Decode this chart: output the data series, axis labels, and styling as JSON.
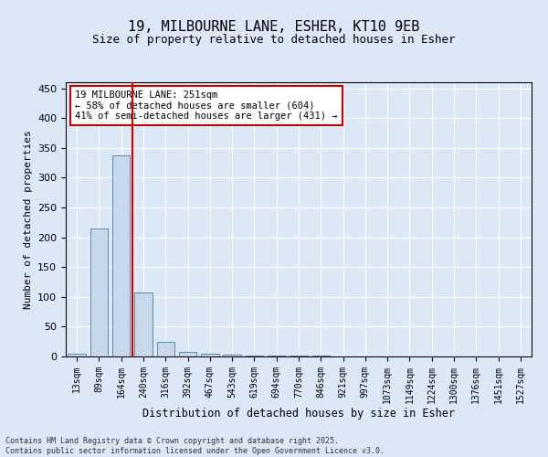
{
  "title": "19, MILBOURNE LANE, ESHER, KT10 9EB",
  "subtitle": "Size of property relative to detached houses in Esher",
  "xlabel": "Distribution of detached houses by size in Esher",
  "ylabel": "Number of detached properties",
  "categories": [
    "13sqm",
    "89sqm",
    "164sqm",
    "240sqm",
    "316sqm",
    "392sqm",
    "467sqm",
    "543sqm",
    "619sqm",
    "694sqm",
    "770sqm",
    "846sqm",
    "921sqm",
    "997sqm",
    "1073sqm",
    "1149sqm",
    "1224sqm",
    "1300sqm",
    "1376sqm",
    "1451sqm",
    "1527sqm"
  ],
  "values": [
    5,
    215,
    338,
    108,
    25,
    8,
    4,
    3,
    2,
    1,
    1,
    1,
    0,
    0,
    0,
    0,
    0,
    0,
    0,
    0,
    0
  ],
  "bar_color": "#c8d8e8",
  "bar_edge_color": "#5a8ab0",
  "vline_index": 3,
  "vline_color": "#cc0000",
  "annotation_text": "19 MILBOURNE LANE: 251sqm\n← 58% of detached houses are smaller (604)\n41% of semi-detached houses are larger (431) →",
  "annotation_box_color": "white",
  "annotation_box_edge": "#cc0000",
  "ylim": [
    0,
    460
  ],
  "yticks": [
    0,
    50,
    100,
    150,
    200,
    250,
    300,
    350,
    400,
    450
  ],
  "footer": "Contains HM Land Registry data © Crown copyright and database right 2025.\nContains public sector information licensed under the Open Government Licence v3.0.",
  "bg_color": "#dce8f5",
  "plot_bg_color": "#dce8f5",
  "title_fontsize": 11,
  "subtitle_fontsize": 9,
  "tick_fontsize": 7,
  "label_fontsize": 8.5,
  "annotation_fontsize": 7.5
}
